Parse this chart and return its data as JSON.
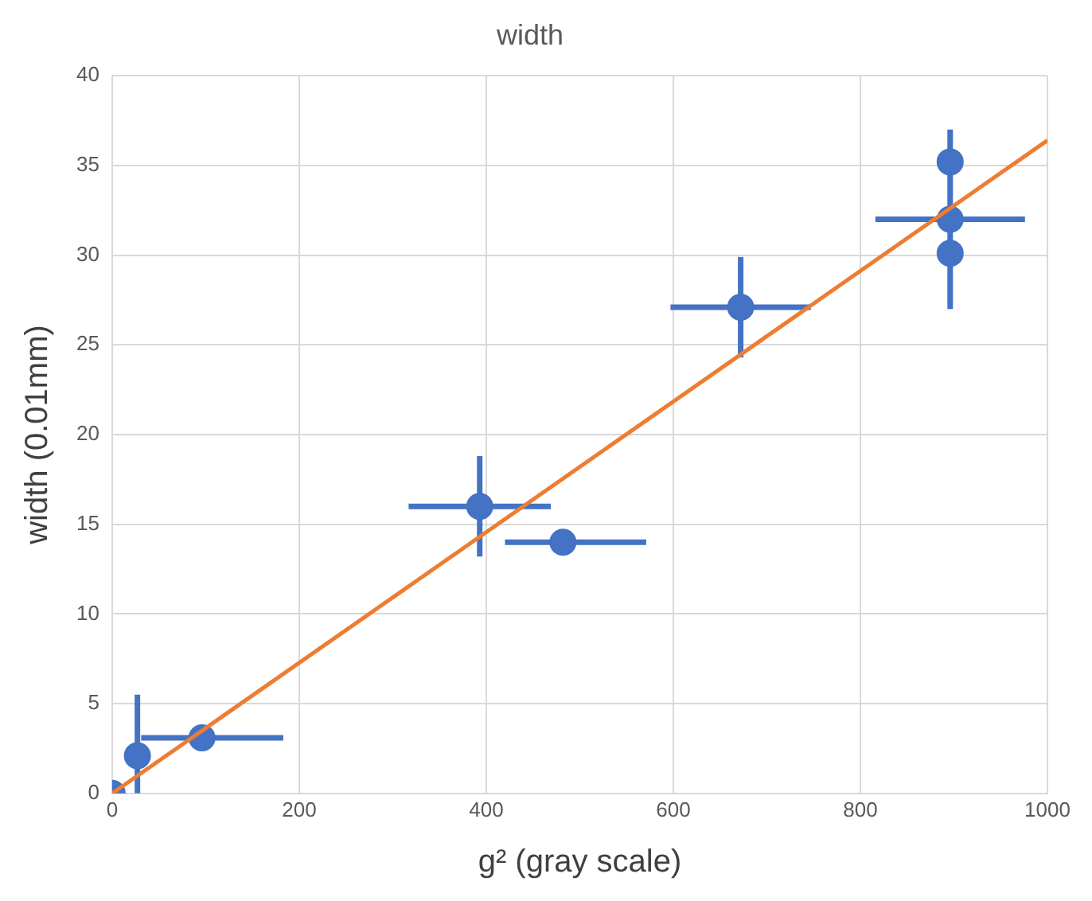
{
  "chart_data": {
    "type": "scatter",
    "title": "width",
    "xlabel": "g² (gray scale)",
    "ylabel": "width (0.01mm)",
    "xlim": [
      0,
      1000
    ],
    "xticks": [
      0,
      200,
      400,
      600,
      800,
      1000
    ],
    "ylim": [
      0,
      40
    ],
    "yticks": [
      0,
      5,
      10,
      15,
      20,
      25,
      30,
      35,
      40
    ],
    "grid": true,
    "legend": false,
    "marker": "circle",
    "series": [
      {
        "color": "#4472c4",
        "x": [
          0,
          27,
          96,
          393,
          482,
          672,
          896,
          896,
          896
        ],
        "values": [
          0,
          2.1,
          3.1,
          16,
          14,
          27.1,
          35.2,
          32,
          30.1
        ],
        "errors": [
          null,
          [
            0,
            5.5
          ],
          null,
          2.8,
          null,
          2.8,
          null,
          5,
          null
        ],
        "xerrors": [
          null,
          null,
          [
            31,
            183
          ],
          76,
          [
            420,
            571
          ],
          75,
          null,
          80,
          null
        ]
      },
      {
        "type": "line",
        "color": "#ed7d31",
        "x": [
          0,
          1000
        ],
        "values": [
          0,
          36.4
        ],
        "marker": "none",
        "line_style": "solid"
      }
    ]
  }
}
